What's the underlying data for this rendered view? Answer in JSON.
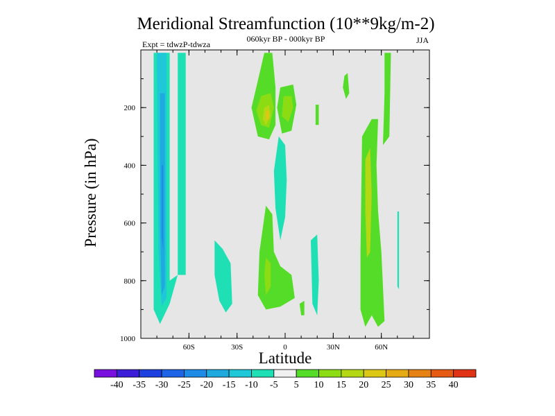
{
  "chart_data": {
    "type": "contour",
    "title": "Meridional Streamfunction (10**9kg/m-2)",
    "subtitle_center": "060kyr BP - 000kyr BP",
    "subtitle_left": "Expt = tdwzP-tdwza",
    "subtitle_right": "JJA",
    "xlabel": "Latitude",
    "ylabel": "Pressure (in hPa)",
    "xlim": [
      -90,
      90
    ],
    "ylim": [
      1000,
      0
    ],
    "x_ticks": [
      {
        "value": -60,
        "label": "60S"
      },
      {
        "value": -30,
        "label": "30S"
      },
      {
        "value": 0,
        "label": "0"
      },
      {
        "value": 30,
        "label": "30N"
      },
      {
        "value": 60,
        "label": "60N"
      }
    ],
    "y_ticks": [
      {
        "value": 200,
        "label": "200"
      },
      {
        "value": 400,
        "label": "400"
      },
      {
        "value": 600,
        "label": "600"
      },
      {
        "value": 800,
        "label": "800"
      },
      {
        "value": 1000,
        "label": "1000"
      }
    ],
    "background_color": "#e6e6e6",
    "colorbar": {
      "levels": [
        -40,
        -35,
        -30,
        -25,
        -20,
        -15,
        -10,
        -5,
        5,
        10,
        15,
        20,
        25,
        30,
        35,
        40
      ],
      "labels": [
        "-40",
        "-35",
        "-30",
        "-25",
        "-20",
        "-15",
        "-10",
        "-5",
        "5",
        "10",
        "15",
        "20",
        "25",
        "30",
        "35",
        "40"
      ],
      "colors": [
        "#7a10e0",
        "#3c1ed8",
        "#1e40e0",
        "#1e64e6",
        "#1e8ce6",
        "#1eaade",
        "#1ec8d8",
        "#1ee0b4",
        "#f0f0f0",
        "#55dc28",
        "#8cdc14",
        "#b4d814",
        "#dcc814",
        "#e6aa14",
        "#e68214",
        "#e65a14",
        "#e03214"
      ]
    },
    "regions": [
      {
        "level_index": 7,
        "lat_lon_pressure": [
          [
            -82,
            10
          ],
          [
            -72,
            10
          ],
          [
            -72,
            800
          ],
          [
            -67,
            780
          ],
          [
            -72,
            880
          ],
          [
            -78,
            950
          ],
          [
            -82,
            900
          ]
        ]
      },
      {
        "level_index": 7,
        "lat_lon_pressure": [
          [
            -67,
            10
          ],
          [
            -62,
            10
          ],
          [
            -62,
            780
          ],
          [
            -67,
            780
          ]
        ]
      },
      {
        "level_index": 6,
        "lat_lon_pressure": [
          [
            -80,
            10
          ],
          [
            -74,
            10
          ],
          [
            -74,
            860
          ],
          [
            -77,
            890
          ],
          [
            -79,
            700
          ]
        ]
      },
      {
        "level_index": 5,
        "lat_lon_pressure": [
          [
            -78,
            150
          ],
          [
            -75,
            150
          ],
          [
            -75,
            820
          ],
          [
            -77,
            850
          ],
          [
            -78,
            600
          ]
        ]
      },
      {
        "level_index": 4,
        "lat_lon_pressure": [
          [
            -77,
            400
          ],
          [
            -76,
            400
          ],
          [
            -76,
            700
          ],
          [
            -77,
            650
          ]
        ]
      },
      {
        "level_index": 7,
        "lat_lon_pressure": [
          [
            -44,
            660
          ],
          [
            -39,
            690
          ],
          [
            -34,
            740
          ],
          [
            -33,
            880
          ],
          [
            -37,
            910
          ],
          [
            -41,
            870
          ],
          [
            -44,
            780
          ]
        ]
      },
      {
        "level_index": 9,
        "lat_lon_pressure": [
          [
            -13,
            10
          ],
          [
            -8,
            10
          ],
          [
            -6,
            130
          ],
          [
            -6,
            260
          ],
          [
            -10,
            310
          ],
          [
            -17,
            300
          ],
          [
            -21,
            200
          ],
          [
            -18,
            130
          ]
        ]
      },
      {
        "level_index": 10,
        "lat_lon_pressure": [
          [
            -15,
            160
          ],
          [
            -9,
            150
          ],
          [
            -7,
            200
          ],
          [
            -10,
            270
          ],
          [
            -15,
            260
          ],
          [
            -18,
            210
          ]
        ]
      },
      {
        "level_index": 11,
        "lat_lon_pressure": [
          [
            -13,
            200
          ],
          [
            -10,
            190
          ],
          [
            -9,
            230
          ],
          [
            -12,
            260
          ],
          [
            -14,
            240
          ]
        ]
      },
      {
        "level_index": 12,
        "lat_lon_pressure": [
          [
            -12,
            210
          ],
          [
            -10,
            210
          ],
          [
            -10,
            240
          ],
          [
            -12,
            245
          ]
        ]
      },
      {
        "level_index": 9,
        "lat_lon_pressure": [
          [
            -3,
            130
          ],
          [
            5,
            120
          ],
          [
            7,
            190
          ],
          [
            4,
            280
          ],
          [
            -2,
            290
          ],
          [
            -5,
            200
          ]
        ]
      },
      {
        "level_index": 10,
        "lat_lon_pressure": [
          [
            -1,
            160
          ],
          [
            4,
            160
          ],
          [
            5,
            200
          ],
          [
            2,
            250
          ],
          [
            -2,
            230
          ]
        ]
      },
      {
        "level_index": 7,
        "lat_lon_pressure": [
          [
            -4,
            300
          ],
          [
            0,
            330
          ],
          [
            1,
            450
          ],
          [
            0,
            580
          ],
          [
            -3,
            660
          ],
          [
            -6,
            550
          ],
          [
            -7,
            420
          ]
        ]
      },
      {
        "level_index": 9,
        "lat_lon_pressure": [
          [
            -12,
            540
          ],
          [
            -8,
            570
          ],
          [
            -7,
            700
          ],
          [
            -3,
            750
          ],
          [
            4,
            780
          ],
          [
            6,
            860
          ],
          [
            -3,
            890
          ],
          [
            -12,
            900
          ],
          [
            -17,
            850
          ],
          [
            -16,
            700
          ]
        ]
      },
      {
        "level_index": 10,
        "lat_lon_pressure": [
          [
            -12,
            720
          ],
          [
            -9,
            740
          ],
          [
            -9,
            820
          ],
          [
            -12,
            850
          ],
          [
            -13,
            780
          ]
        ]
      },
      {
        "level_index": 9,
        "lat_lon_pressure": [
          [
            19,
            190
          ],
          [
            21,
            190
          ],
          [
            21,
            260
          ],
          [
            19,
            260
          ]
        ]
      },
      {
        "level_index": 9,
        "lat_lon_pressure": [
          [
            37,
            90
          ],
          [
            39,
            80
          ],
          [
            40,
            150
          ],
          [
            38,
            170
          ],
          [
            36,
            130
          ]
        ]
      },
      {
        "level_index": 7,
        "lat_lon_pressure": [
          [
            16,
            660
          ],
          [
            20,
            640
          ],
          [
            21,
            800
          ],
          [
            20,
            920
          ],
          [
            17,
            880
          ]
        ]
      },
      {
        "level_index": 9,
        "lat_lon_pressure": [
          [
            9,
            880
          ],
          [
            12,
            870
          ],
          [
            12,
            920
          ],
          [
            10,
            920
          ]
        ]
      },
      {
        "level_index": 9,
        "lat_lon_pressure": [
          [
            48,
            300
          ],
          [
            54,
            240
          ],
          [
            58,
            240
          ],
          [
            57,
            400
          ],
          [
            58,
            560
          ],
          [
            60,
            700
          ],
          [
            62,
            940
          ],
          [
            58,
            960
          ],
          [
            54,
            920
          ],
          [
            50,
            960
          ],
          [
            47,
            900
          ],
          [
            47,
            700
          ]
        ]
      },
      {
        "level_index": 9,
        "lat_lon_pressure": [
          [
            62,
            10
          ],
          [
            66,
            10
          ],
          [
            65,
            300
          ],
          [
            61,
            330
          ],
          [
            62,
            150
          ]
        ]
      },
      {
        "level_index": 11,
        "lat_lon_pressure": [
          [
            50,
            380
          ],
          [
            53,
            340
          ],
          [
            54,
            500
          ],
          [
            53,
            700
          ],
          [
            51,
            720
          ],
          [
            50,
            560
          ]
        ]
      },
      {
        "level_index": 7,
        "lat_lon_pressure": [
          [
            70,
            560
          ],
          [
            71,
            560
          ],
          [
            71,
            830
          ],
          [
            70,
            820
          ]
        ]
      }
    ]
  }
}
